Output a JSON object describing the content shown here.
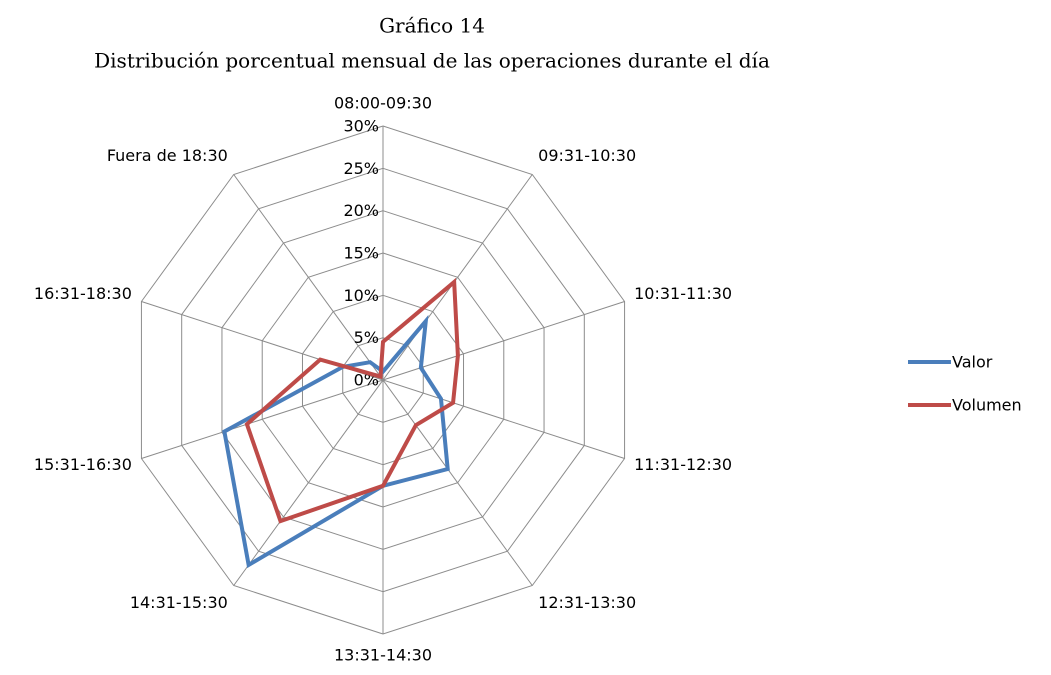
{
  "chart_data": {
    "type": "radar",
    "title": "Gráfico 14",
    "subtitle": "Distribución porcentual mensual de las operaciones durante el día",
    "categories": [
      "08:00-09:30",
      "09:31-10:30",
      "10:31-11:30",
      "11:31-12:30",
      "12:31-13:30",
      "13:31-14:30",
      "14:31-15:30",
      "15:31-16:30",
      "16:31-18:30",
      "Fuera de 18:30"
    ],
    "series": [
      {
        "name": "Valor",
        "color": "#4a7ebb",
        "values": [
          1,
          8.6,
          4.7,
          7.2,
          13,
          12.5,
          27,
          19.7,
          5,
          2.6
        ]
      },
      {
        "name": "Volumen",
        "color": "#be4b48",
        "values": [
          4.5,
          14.3,
          9.3,
          8.7,
          6.6,
          12.5,
          20.6,
          16.9,
          7.8,
          0.5
        ]
      }
    ],
    "ylim": [
      0,
      30
    ],
    "yticks": [
      {
        "value": 0,
        "label": "0%"
      },
      {
        "value": 5,
        "label": "5%"
      },
      {
        "value": 10,
        "label": "10%"
      },
      {
        "value": 15,
        "label": "15%"
      },
      {
        "value": 20,
        "label": "20%"
      },
      {
        "value": 25,
        "label": "25%"
      },
      {
        "value": 30,
        "label": "30%"
      }
    ],
    "grid": true,
    "legend": "right"
  }
}
